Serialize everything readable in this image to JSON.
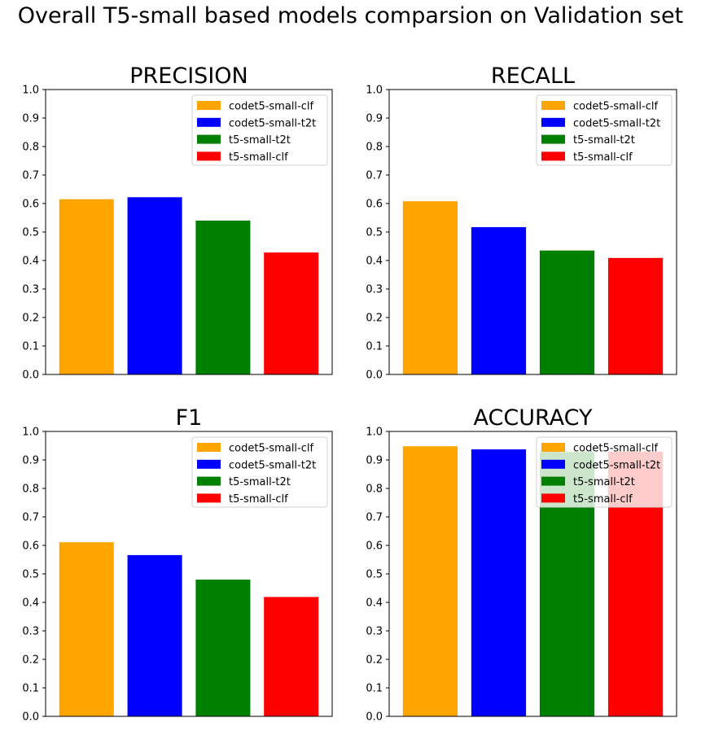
{
  "figure": {
    "title": "Overall T5-small based models comparsion on Validation set"
  },
  "chart_data": [
    {
      "type": "bar",
      "title": "PRECISION",
      "categories": [
        "codet5-small-clf",
        "codet5-small-t2t",
        "t5-small-t2t",
        "t5-small-clf"
      ],
      "values": [
        0.615,
        0.622,
        0.54,
        0.428
      ],
      "colors": [
        "#FFA500",
        "#0000FF",
        "#008000",
        "#FF0000"
      ],
      "ylim": [
        0,
        1.0
      ],
      "yticks": [
        "0.0",
        "0.1",
        "0.2",
        "0.3",
        "0.4",
        "0.5",
        "0.6",
        "0.7",
        "0.8",
        "0.9",
        "1.0"
      ],
      "legend": "top-right",
      "grid": false
    },
    {
      "type": "bar",
      "title": "RECALL",
      "categories": [
        "codet5-small-clf",
        "codet5-small-t2t",
        "t5-small-t2t",
        "t5-small-clf"
      ],
      "values": [
        0.608,
        0.517,
        0.435,
        0.409
      ],
      "colors": [
        "#FFA500",
        "#0000FF",
        "#008000",
        "#FF0000"
      ],
      "ylim": [
        0,
        1.0
      ],
      "yticks": [
        "0.0",
        "0.1",
        "0.2",
        "0.3",
        "0.4",
        "0.5",
        "0.6",
        "0.7",
        "0.8",
        "0.9",
        "1.0"
      ],
      "legend": "top-right",
      "grid": false
    },
    {
      "type": "bar",
      "title": "F1",
      "categories": [
        "codet5-small-clf",
        "codet5-small-t2t",
        "t5-small-t2t",
        "t5-small-clf"
      ],
      "values": [
        0.611,
        0.566,
        0.48,
        0.419
      ],
      "colors": [
        "#FFA500",
        "#0000FF",
        "#008000",
        "#FF0000"
      ],
      "ylim": [
        0,
        1.0
      ],
      "yticks": [
        "0.0",
        "0.1",
        "0.2",
        "0.3",
        "0.4",
        "0.5",
        "0.6",
        "0.7",
        "0.8",
        "0.9",
        "1.0"
      ],
      "legend": "top-right",
      "grid": false
    },
    {
      "type": "bar",
      "title": "ACCURACY",
      "categories": [
        "codet5-small-clf",
        "codet5-small-t2t",
        "t5-small-t2t",
        "t5-small-clf"
      ],
      "values": [
        0.948,
        0.937,
        0.928,
        0.929
      ],
      "colors": [
        "#FFA500",
        "#0000FF",
        "#008000",
        "#FF0000"
      ],
      "ylim": [
        0,
        1.0
      ],
      "yticks": [
        "0.0",
        "0.1",
        "0.2",
        "0.3",
        "0.4",
        "0.5",
        "0.6",
        "0.7",
        "0.8",
        "0.9",
        "1.0"
      ],
      "legend": "top-right",
      "grid": false
    }
  ]
}
